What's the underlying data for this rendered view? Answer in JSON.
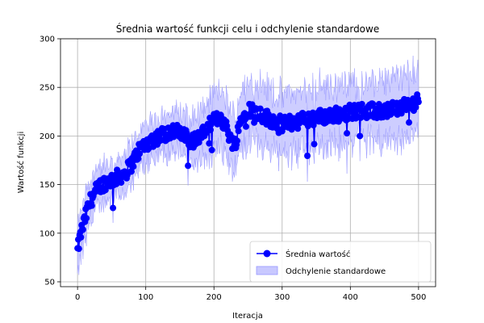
{
  "chart_data": {
    "type": "line",
    "title": "Średnia wartość funkcji celu i odchylenie standardowe",
    "xlabel": "Iteracja",
    "ylabel": "Wartość funkcji",
    "xlim": [
      -25,
      525
    ],
    "ylim": [
      45,
      300
    ],
    "x_ticks": [
      0,
      100,
      200,
      300,
      400,
      500
    ],
    "y_ticks": [
      50,
      100,
      150,
      200,
      250,
      300
    ],
    "x_tick_labels": [
      "0",
      "100",
      "200",
      "300",
      "400",
      "500"
    ],
    "y_tick_labels": [
      "50",
      "100",
      "150",
      "200",
      "250",
      "300"
    ],
    "grid": true,
    "legend_position": "lower-right",
    "colors": {
      "mean": "#0000ff",
      "band": "#c8c8ff",
      "band_edge": "#9999ff",
      "grid": "#b0b0b0"
    },
    "series": [
      {
        "name": "Średnia wartość",
        "style": "line-with-markers",
        "anchors_x": [
          0,
          5,
          10,
          15,
          20,
          30,
          40,
          50,
          60,
          70,
          80,
          90,
          100,
          110,
          120,
          130,
          140,
          150,
          160,
          170,
          180,
          190,
          200,
          210,
          220,
          230,
          240,
          250,
          260,
          270,
          280,
          290,
          300,
          320,
          340,
          360,
          380,
          400,
          420,
          440,
          460,
          480,
          500
        ],
        "anchors_y": [
          82,
          100,
          112,
          125,
          135,
          147,
          152,
          155,
          158,
          162,
          172,
          185,
          192,
          196,
          200,
          203,
          205,
          203,
          198,
          195,
          200,
          208,
          215,
          220,
          205,
          190,
          218,
          228,
          225,
          222,
          218,
          215,
          212,
          215,
          218,
          220,
          222,
          225,
          226,
          225,
          228,
          230,
          236
        ],
        "noise_amplitude": 8
      },
      {
        "name": "Odchylenie standardowe",
        "style": "band",
        "std_anchors_x": [
          0,
          20,
          50,
          100,
          150,
          200,
          250,
          300,
          350,
          400,
          450,
          500
        ],
        "std_anchors_y": [
          22,
          20,
          16,
          18,
          20,
          26,
          28,
          28,
          30,
          28,
          28,
          30
        ]
      }
    ]
  }
}
